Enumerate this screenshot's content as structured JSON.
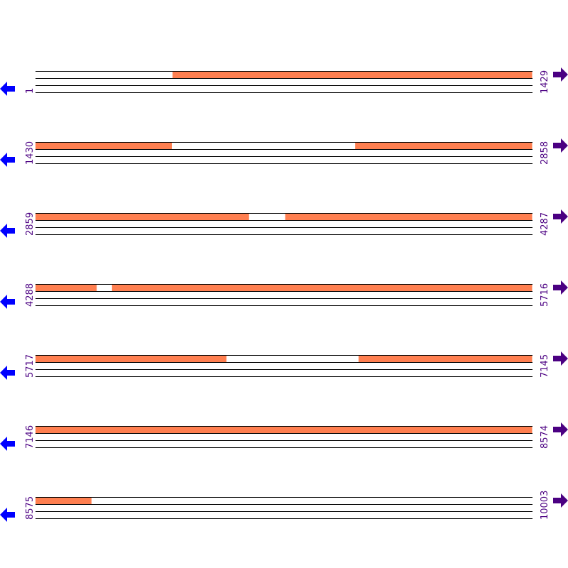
{
  "colors": {
    "segment": "#ff7f50",
    "label": "#4b0082",
    "left_arrow": "#0000ff",
    "right_arrow": "#4b0082",
    "line": "#000000"
  },
  "bp_per_row": 1429,
  "rows": [
    {
      "start": "1",
      "end": "1429",
      "segments": [
        [
          395,
          1429
        ]
      ]
    },
    {
      "start": "1430",
      "end": "2858",
      "segments": [
        [
          1430,
          1822
        ],
        [
          2349,
          2858
        ]
      ]
    },
    {
      "start": "2859",
      "end": "4287",
      "segments": [
        [
          2859,
          3473
        ],
        [
          3577,
          4287
        ]
      ]
    },
    {
      "start": "4288",
      "end": "5716",
      "segments": [
        [
          4288,
          4464
        ],
        [
          4508,
          5716
        ]
      ]
    },
    {
      "start": "5717",
      "end": "7145",
      "segments": [
        [
          5717,
          6266
        ],
        [
          6646,
          7145
        ]
      ]
    },
    {
      "start": "7146",
      "end": "8574",
      "segments": [
        [
          7146,
          8574
        ]
      ]
    },
    {
      "start": "8575",
      "end": "10003",
      "segments": [
        [
          8575,
          8736
        ]
      ]
    }
  ]
}
